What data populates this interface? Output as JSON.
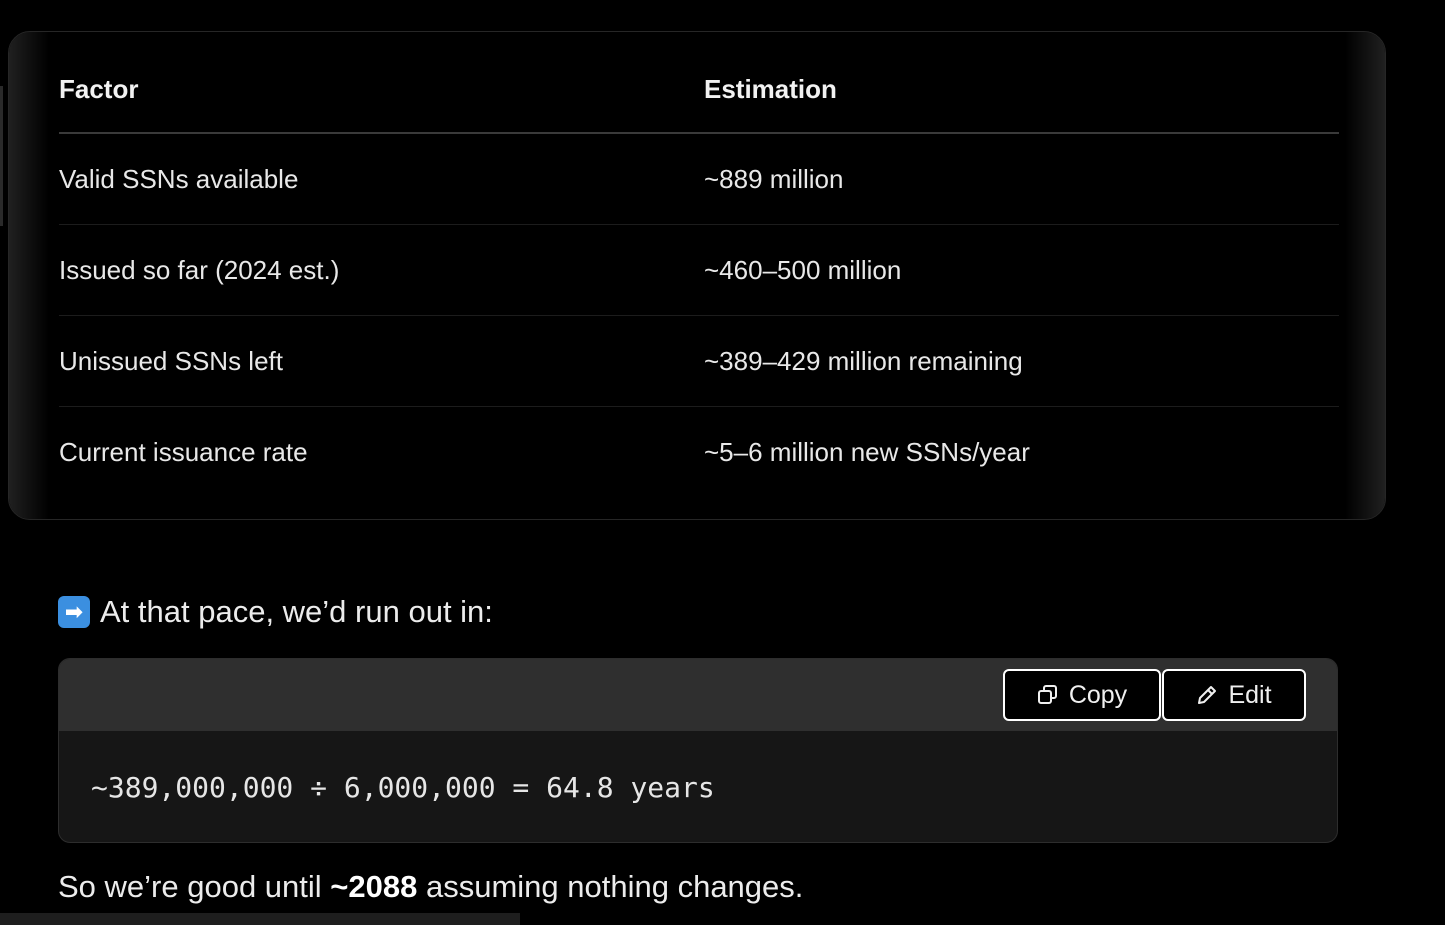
{
  "table": {
    "headers": [
      "Factor",
      "Estimation"
    ],
    "rows": [
      [
        "Valid SSNs available",
        "~889 million"
      ],
      [
        "Issued so far (2024 est.)",
        "~460–500 million"
      ],
      [
        "Unissued SSNs left",
        "~389–429 million remaining"
      ],
      [
        "Current issuance rate",
        "~5–6 million new SSNs/year"
      ]
    ]
  },
  "pace": {
    "emoji": "➡",
    "text": "At that pace, we’d run out in:"
  },
  "code": {
    "copy_label": "Copy",
    "edit_label": "Edit",
    "content": "~389,000,000 ÷ 6,000,000 = 64.8 years"
  },
  "conclusion": {
    "before": "So we’re good until ",
    "bold": "~2088",
    "after": " assuming nothing changes."
  },
  "colors": {
    "background": "#000000",
    "code_header": "#2f2f2f",
    "code_body": "#161616",
    "emoji_blue": "#3b8fe0"
  }
}
